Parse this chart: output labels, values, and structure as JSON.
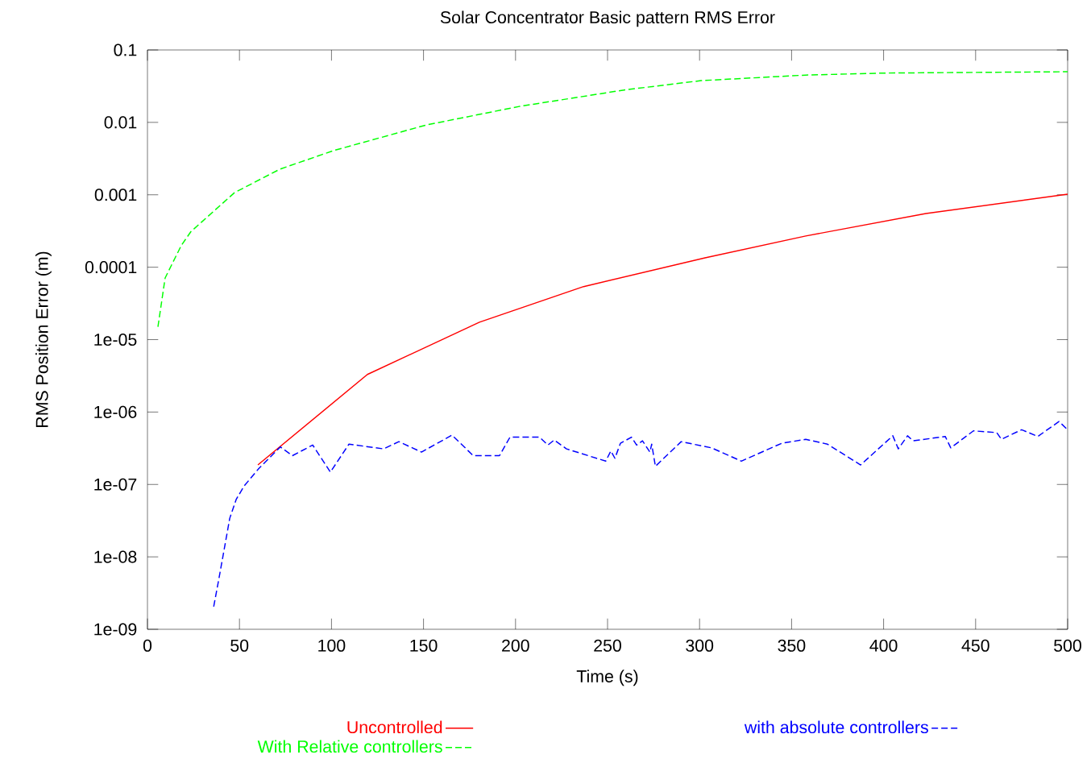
{
  "chart_data": {
    "type": "line",
    "title": "Solar Concentrator Basic pattern RMS Error",
    "xlabel": "Time (s)",
    "ylabel": "RMS Position Error (m)",
    "xlim": [
      0,
      500
    ],
    "xticks": [
      0,
      50,
      100,
      150,
      200,
      250,
      300,
      350,
      400,
      450,
      500
    ],
    "ylim": [
      1e-09,
      0.1
    ],
    "yticks": [
      {
        "value": 1e-09,
        "label": "1e-09"
      },
      {
        "value": 1e-08,
        "label": "1e-08"
      },
      {
        "value": 1e-07,
        "label": "1e-07"
      },
      {
        "value": 1e-06,
        "label": "1e-06"
      },
      {
        "value": 1e-05,
        "label": "1e-05"
      },
      0.0001,
      0.001,
      0.01,
      0.1
    ],
    "log": "y",
    "grid": false,
    "legend": "bottom",
    "marker": "none",
    "series": [
      {
        "name": "Uncontrolled",
        "color": "#ff0000",
        "line_style": "solid",
        "x": [
          60,
          119.5,
          180.4,
          237,
          303,
          357.7,
          423,
          500
        ],
        "values": [
          1.86e-07,
          3.3e-06,
          1.74e-05,
          5.4e-05,
          0.000135,
          0.00027,
          0.00055,
          0.00102
        ]
      },
      {
        "name": "With Relative controllers",
        "color": "#00ff00",
        "line_style": "dashed",
        "x": [
          5.7,
          9.6,
          18.4,
          23.6,
          47.3,
          72,
          101,
          151.5,
          202,
          259,
          300.8,
          357.7,
          401,
          500
        ],
        "values": [
          1.5e-05,
          7.1e-05,
          0.0002,
          0.00031,
          0.00107,
          0.00226,
          0.00407,
          0.0092,
          0.0166,
          0.028,
          0.0377,
          0.045,
          0.048,
          0.05
        ]
      },
      {
        "name": "with absolute controllers",
        "color": "#0000ff",
        "line_style": "dashed",
        "x": [
          36,
          38.5,
          41.6,
          44.7,
          48.2,
          52.5,
          60.4,
          72.2,
          78.8,
          89.8,
          99.4,
          109.5,
          128.3,
          136.6,
          148.9,
          165.5,
          177,
          191.3,
          197,
          213,
          217.6,
          221,
          227.7,
          249,
          251.8,
          254,
          257,
          263,
          265.8,
          269,
          273,
          274,
          276,
          290,
          306.5,
          322.7,
          344.6,
          357.7,
          369.5,
          387.5,
          405,
          408,
          413,
          416,
          433.5,
          436.5,
          448.8,
          461.5,
          464,
          475,
          483.8,
          495.3,
          500
        ],
        "values": [
          2.06e-09,
          4.5e-09,
          1.23e-08,
          3.4e-08,
          6.2e-08,
          9.5e-08,
          1.65e-07,
          3.3e-07,
          2.5e-07,
          3.5e-07,
          1.48e-07,
          3.6e-07,
          3.1e-07,
          3.9e-07,
          2.8e-07,
          4.8e-07,
          2.5e-07,
          2.5e-07,
          4.5e-07,
          4.5e-07,
          3.5e-07,
          4.1e-07,
          3.1e-07,
          2.1e-07,
          2.9e-07,
          2.3e-07,
          3.7e-07,
          4.5e-07,
          3.5e-07,
          4e-07,
          2.8e-07,
          3.6e-07,
          1.78e-07,
          3.9e-07,
          3.2e-07,
          2.1e-07,
          3.7e-07,
          4.2e-07,
          3.6e-07,
          1.86e-07,
          4.7e-07,
          3.1e-07,
          4.7e-07,
          4e-07,
          4.6e-07,
          3.2e-07,
          5.5e-07,
          5.2e-07,
          4.2e-07,
          5.7e-07,
          4.6e-07,
          7.4e-07,
          5.7e-07
        ]
      }
    ]
  }
}
